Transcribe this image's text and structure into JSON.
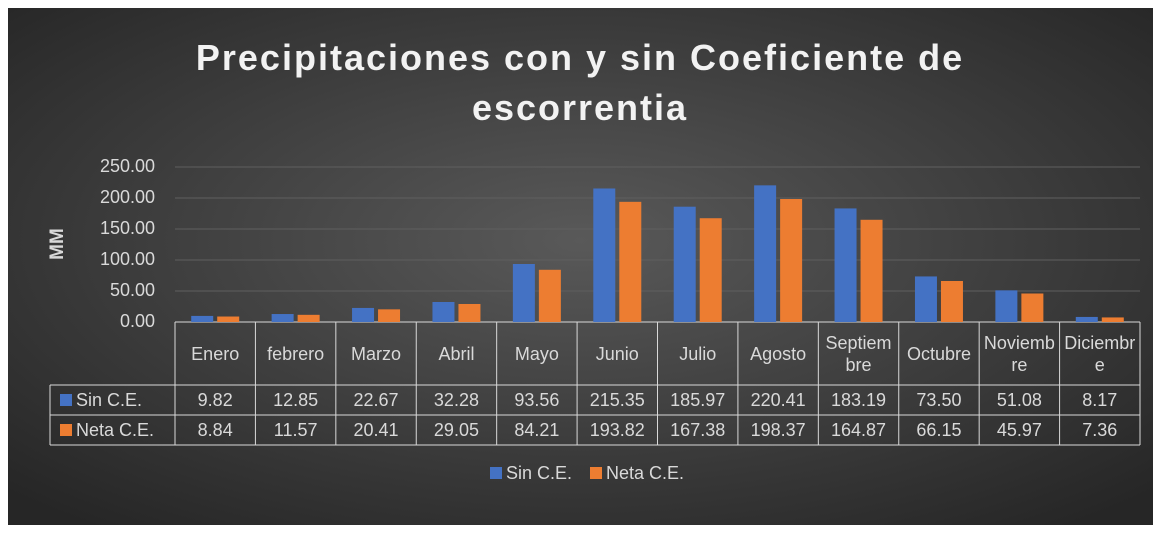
{
  "chart_data": {
    "type": "bar",
    "title": "Precipitaciones con y sin Coeficiente de escorrentia",
    "y_label": "MM",
    "categories": [
      "Enero",
      "febrero",
      "Marzo",
      "Abril",
      "Mayo",
      "Junio",
      "Julio",
      "Agosto",
      "Septiembre",
      "Octubre",
      "Noviembre",
      "Diciembre"
    ],
    "series": [
      {
        "name": "Sin C.E.",
        "color": "#4472c4",
        "values": [
          9.82,
          12.85,
          22.67,
          32.28,
          93.56,
          215.35,
          185.97,
          220.41,
          183.19,
          73.5,
          51.08,
          8.17
        ],
        "value_labels": [
          "9.82",
          "12.85",
          "22.67",
          "32.28",
          "93.56",
          "215.35",
          "185.97",
          "220.41",
          "183.19",
          "73.50",
          "51.08",
          "8.17"
        ]
      },
      {
        "name": "Neta C.E.",
        "color": "#ed7d31",
        "values": [
          8.84,
          11.57,
          20.41,
          29.05,
          84.21,
          193.82,
          167.38,
          198.37,
          164.87,
          66.15,
          45.97,
          7.36
        ],
        "value_labels": [
          "8.84",
          "11.57",
          "20.41",
          "29.05",
          "84.21",
          "193.82",
          "167.38",
          "198.37",
          "164.87",
          "66.15",
          "45.97",
          "7.36"
        ]
      }
    ],
    "ylim": [
      0,
      250
    ],
    "yticks": [
      {
        "value": 0,
        "label": "0.00"
      },
      {
        "value": 50,
        "label": "50.00"
      },
      {
        "value": 100,
        "label": "100.00"
      },
      {
        "value": 150,
        "label": "150.00"
      },
      {
        "value": 200,
        "label": "200.00"
      },
      {
        "value": 250,
        "label": "250.00"
      }
    ],
    "grid": true,
    "legend": "bottom"
  }
}
